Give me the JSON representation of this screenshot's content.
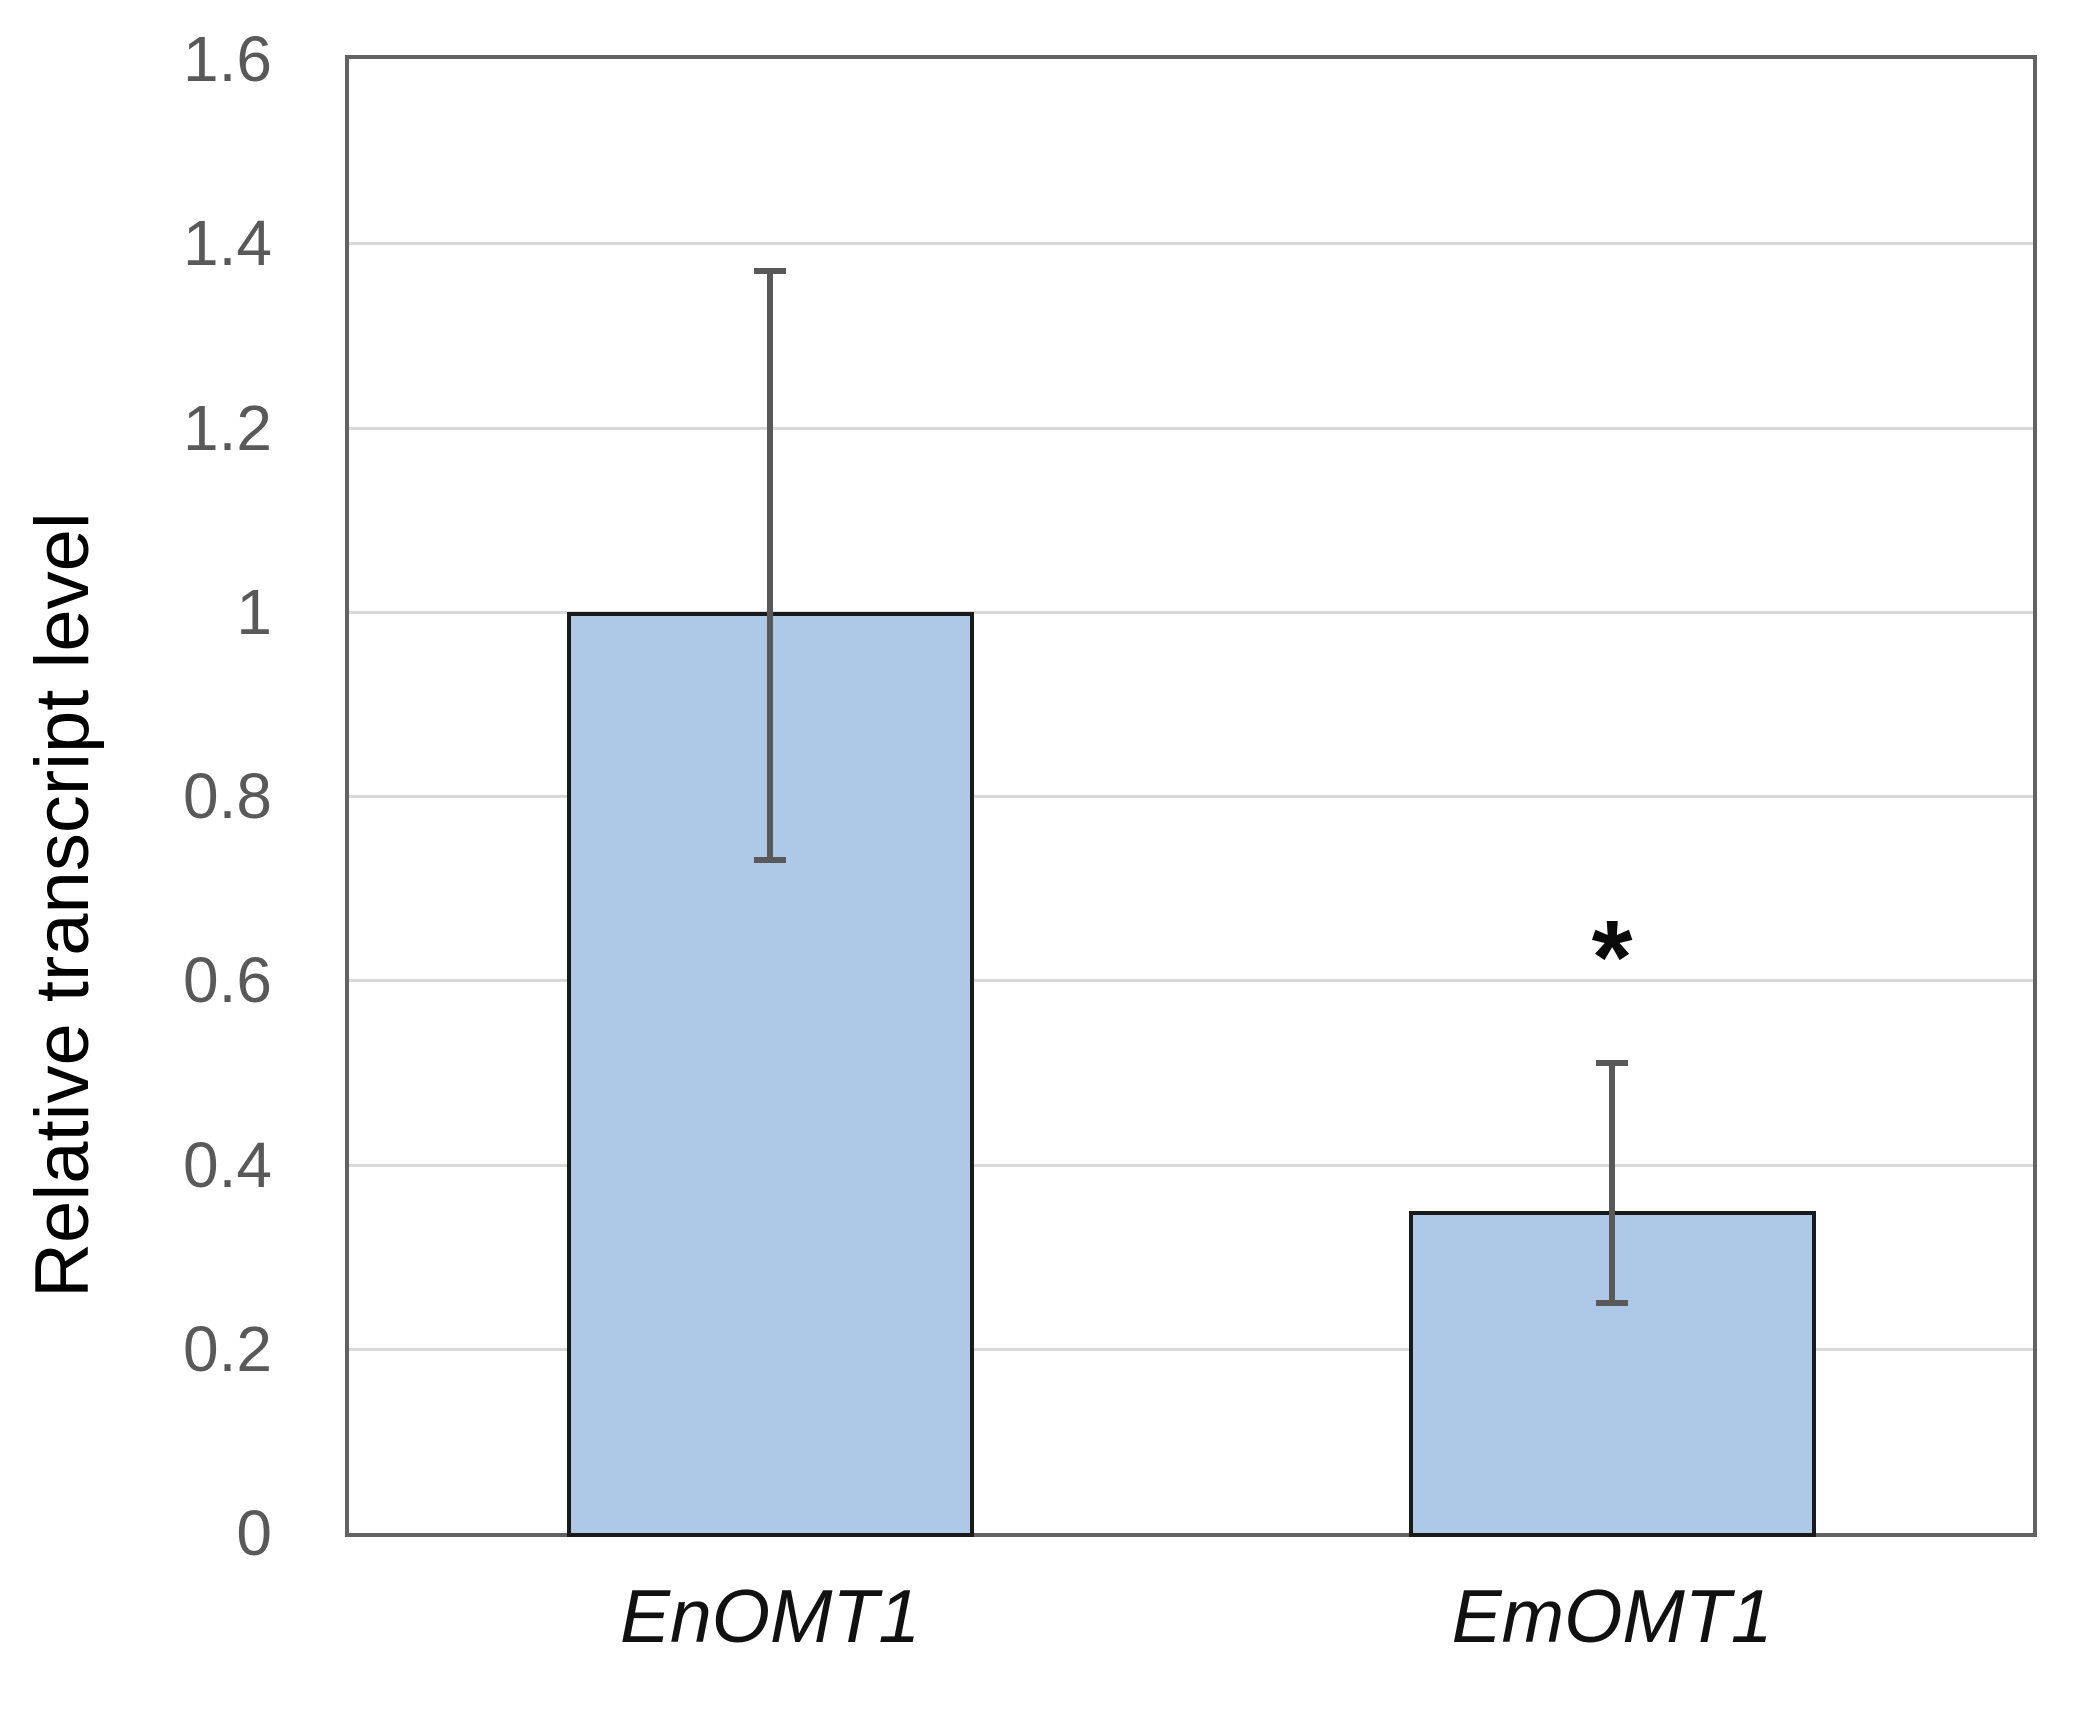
{
  "figure": {
    "type_label": "bar-chart"
  },
  "chart_data": {
    "type": "bar",
    "title": "",
    "xlabel": "",
    "ylabel": "Relative transcript level",
    "categories": [
      "EnOMT1",
      "EmOMT1"
    ],
    "values": [
      1.0,
      0.35
    ],
    "error_bars": [
      {
        "low": 0.73,
        "high": 1.37
      },
      {
        "low": 0.25,
        "high": 0.51
      }
    ],
    "annotations": [
      {
        "category": "EmOMT1",
        "text": "*"
      }
    ],
    "ylim": [
      0,
      1.6
    ],
    "ytick_step": 0.2,
    "ytick_labels": [
      "0",
      "0.2",
      "0.4",
      "0.6",
      "0.8",
      "1",
      "1.2",
      "1.4",
      "1.6"
    ],
    "grid": true,
    "legend": "none",
    "bar_color": "#aec9e8",
    "bar_border_color": "#1a1a1a",
    "error_bar_color": "#595959",
    "axis_frame_color": "#626262",
    "gridline_color": "#d9d9d9",
    "tick_label_color": "#595959",
    "category_label_color": "#111111",
    "annotation_color": "#0a0a0a"
  }
}
